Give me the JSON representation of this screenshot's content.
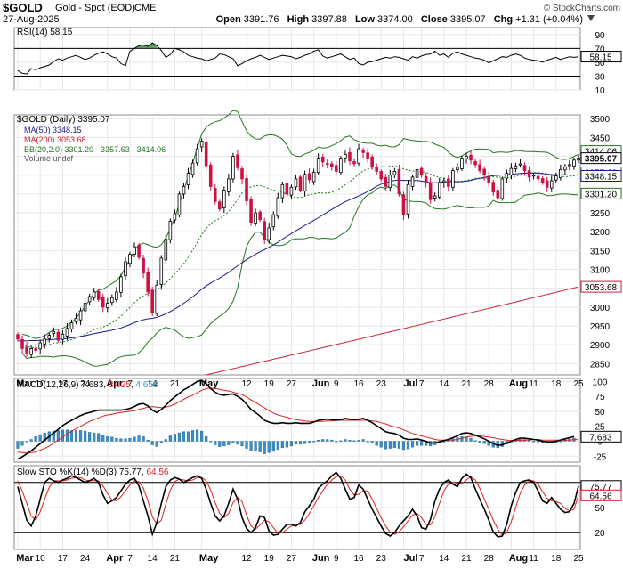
{
  "header": {
    "symbol": "$GOLD",
    "name": "Gold - Spot (EOD)",
    "exchange": "CME",
    "watermark": "© StockCharts.com",
    "date": "27-Aug-2025",
    "open_label": "Open",
    "open": "3391.76",
    "high_label": "High",
    "high": "3397.88",
    "low_label": "Low",
    "low": "3374.00",
    "close_label": "Close",
    "close": "3395.07",
    "chg_label": "Chg",
    "chg": "+1.31 (+0.04%)"
  },
  "colors": {
    "up": "#000000",
    "down": "#cc1144",
    "ma50": "#1a1a8c",
    "ma200": "#cc2233",
    "bb": "#227722",
    "macd_line": "#000000",
    "signal_line": "#dd2222",
    "histogram": "#3a8fc4",
    "sto_k": "#000000",
    "sto_d": "#dd2222",
    "rsi": "#000000"
  },
  "x_axis": {
    "labels": [
      "Mar",
      "10",
      "17",
      "24",
      "Apr",
      "7",
      "14",
      "21",
      "May",
      "12",
      "19",
      "27",
      "Jun",
      "9",
      "16",
      "23",
      "Jul",
      "7",
      "14",
      "21",
      "28",
      "Aug",
      "11",
      "18",
      "25"
    ],
    "label_index": [
      0,
      5,
      10,
      15,
      20,
      25,
      30,
      35,
      41,
      51,
      56,
      61,
      66,
      71,
      76,
      81,
      86,
      90,
      95,
      100,
      105,
      110,
      115,
      120,
      125
    ],
    "bold_labels": [
      "Mar",
      "Apr",
      "May",
      "Jun",
      "Jul",
      "Aug"
    ]
  },
  "chart_data": [
    {
      "panel": "rsi",
      "type": "line",
      "legend": "RSI(14) 58.15",
      "value_label": "58.15",
      "ylim": [
        10,
        100
      ],
      "y_ticks": [
        90,
        70,
        50,
        30,
        10
      ],
      "levels": [
        70,
        30
      ],
      "values": [
        38,
        34,
        33,
        41,
        39,
        42,
        44,
        46,
        51,
        55,
        53,
        56,
        58,
        60,
        57,
        54,
        56,
        60,
        63,
        65,
        62,
        58,
        56,
        48,
        45,
        66,
        70,
        74,
        75,
        73,
        78,
        74,
        67,
        57,
        61,
        70,
        68,
        65,
        60,
        58,
        56,
        55,
        52,
        54,
        56,
        62,
        61,
        58,
        55,
        45,
        48,
        52,
        55,
        57,
        60,
        57,
        54,
        56,
        58,
        60,
        59,
        58,
        55,
        57,
        60,
        62,
        66,
        68,
        59,
        56,
        58,
        60,
        62,
        58,
        54,
        56,
        48,
        46,
        50,
        51,
        53,
        55,
        57,
        56,
        58,
        57,
        55,
        53,
        58,
        56,
        59,
        61,
        62,
        66,
        60,
        62,
        57,
        63,
        65,
        62,
        60,
        58,
        56,
        55,
        53,
        49,
        52,
        55,
        58,
        57,
        60,
        62,
        60,
        56,
        54,
        53,
        52,
        50,
        53,
        55,
        57,
        54,
        56,
        58,
        57,
        58
      ]
    },
    {
      "panel": "price",
      "type": "candlestick",
      "legend": [
        "$GOLD (Daily) 3395.07",
        "MA(50) 3348.15",
        "MA(200) 3053.68",
        "BB(20,2.0) 3301.20 - 3357.63 - 3414.06",
        "Volume undef"
      ],
      "ylim": [
        2820,
        3510
      ],
      "y_ticks": [
        3500,
        3450,
        3400,
        3350,
        3300,
        3250,
        3200,
        3150,
        3100,
        3050,
        3000,
        2950,
        2900,
        2850
      ],
      "price_tags": [
        {
          "value": 3414.06,
          "label": "3414.06",
          "kind": "bb",
          "bold": false
        },
        {
          "value": 3395.07,
          "label": "3395.07",
          "kind": "close",
          "bold": true
        },
        {
          "value": 3357.63,
          "label": "3357.63",
          "kind": "bb",
          "bold": false
        },
        {
          "value": 3348.15,
          "label": "3348.15",
          "kind": "ma50",
          "bold": false
        },
        {
          "value": 3301.2,
          "label": "3301.20",
          "kind": "bb",
          "bold": false
        },
        {
          "value": 3053.68,
          "label": "3053.68",
          "kind": "ma200",
          "bold": false
        }
      ],
      "close": [
        2915,
        2890,
        2878,
        2890,
        2885,
        2905,
        2915,
        2925,
        2935,
        2912,
        2928,
        2943,
        2958,
        2970,
        2990,
        3010,
        3028,
        3040,
        3020,
        3000,
        3010,
        3025,
        3040,
        3080,
        3120,
        3140,
        3160,
        3132,
        3090,
        3040,
        2985,
        3058,
        3130,
        3180,
        3228,
        3248,
        3300,
        3320,
        3355,
        3382,
        3420,
        3440,
        3375,
        3320,
        3280,
        3260,
        3310,
        3340,
        3400,
        3370,
        3340,
        3282,
        3225,
        3250,
        3232,
        3180,
        3210,
        3245,
        3290,
        3325,
        3300,
        3318,
        3340,
        3310,
        3352,
        3338,
        3358,
        3395,
        3385,
        3380,
        3372,
        3360,
        3395,
        3405,
        3388,
        3380,
        3420,
        3410,
        3395,
        3374,
        3360,
        3340,
        3320,
        3350,
        3360,
        3300,
        3245,
        3325,
        3345,
        3365,
        3350,
        3330,
        3285,
        3295,
        3330,
        3335,
        3320,
        3362,
        3372,
        3395,
        3400,
        3390,
        3378,
        3362,
        3350,
        3330,
        3305,
        3290,
        3340,
        3355,
        3368,
        3374,
        3380,
        3362,
        3345,
        3350,
        3340,
        3330,
        3318,
        3335,
        3348,
        3365,
        3372,
        3378,
        3390,
        3395.07
      ]
    },
    {
      "panel": "macd",
      "type": "line+histogram",
      "legend": "MACD(12,26,9) 7.683, 3.025, 4.658",
      "legend_parts": [
        "MACD(12,26,9) 7.683, ",
        "3.025",
        ", ",
        "4.658"
      ],
      "value_label": "7.683",
      "ylim": [
        -35,
        105
      ],
      "y_ticks": [
        100,
        75,
        50,
        25,
        0,
        -25
      ],
      "macd": [
        -30,
        -26,
        -21,
        -16,
        -10,
        -4,
        2,
        8,
        14,
        20,
        26,
        31,
        35,
        39,
        43,
        46,
        48,
        50,
        52,
        52,
        52,
        52,
        52,
        52,
        53,
        55,
        58,
        62,
        63,
        59,
        52,
        48,
        53,
        60,
        68,
        74,
        80,
        86,
        90,
        95,
        100,
        102,
        96,
        88,
        82,
        78,
        77,
        78,
        79,
        75,
        70,
        62,
        53,
        48,
        42,
        35,
        32,
        30,
        30,
        31,
        30,
        30,
        31,
        30,
        30,
        30,
        32,
        35,
        36,
        37,
        36,
        35,
        36,
        38,
        37,
        36,
        37,
        38,
        35,
        31,
        26,
        21,
        16,
        14,
        13,
        10,
        5,
        3,
        3,
        4,
        2,
        0,
        -3,
        -3,
        -1,
        1,
        3,
        6,
        9,
        13,
        14,
        13,
        10,
        7,
        4,
        0,
        -4,
        -7,
        -6,
        -3,
        0,
        3,
        5,
        5,
        4,
        3,
        2,
        0,
        -1,
        -1,
        0,
        2,
        4,
        6,
        7.683
      ],
      "signal": [
        -18,
        -19,
        -20,
        -19,
        -18,
        -15,
        -12,
        -8,
        -3,
        2,
        7,
        12,
        17,
        21,
        25,
        29,
        33,
        36,
        39,
        42,
        44,
        45,
        47,
        48,
        49,
        50,
        51,
        53,
        55,
        57,
        58,
        57,
        56,
        57,
        59,
        62,
        66,
        70,
        74,
        77,
        81,
        85,
        88,
        89,
        88,
        87,
        85,
        84,
        82,
        80,
        78,
        74,
        69,
        65,
        60,
        56,
        51,
        47,
        44,
        42,
        40,
        38,
        36,
        35,
        34,
        33,
        33,
        33,
        33,
        34,
        34,
        35,
        35,
        35,
        35,
        35,
        35,
        35,
        35,
        34,
        33,
        31,
        29,
        26,
        24,
        22,
        19,
        16,
        13,
        11,
        9,
        7,
        5,
        3,
        2,
        2,
        2,
        2,
        3,
        5,
        7,
        8,
        9,
        9,
        8,
        7,
        6,
        4,
        3,
        2,
        1,
        1,
        2,
        2,
        2,
        3,
        3,
        2,
        2,
        2,
        2,
        2,
        2,
        2,
        2.5,
        3.025
      ]
    },
    {
      "panel": "sto",
      "type": "line",
      "legend": "Slow STO %K(14) %D(3) 75.77, 64.56",
      "legend_parts": [
        "Slow STO %K(14) %D(3) ",
        "75.77",
        ", ",
        "64.56"
      ],
      "k_label": "75.77",
      "d_label": "64.56",
      "ylim": [
        0,
        100
      ],
      "y_ticks": [
        80,
        50,
        20
      ],
      "levels": [
        80,
        20
      ],
      "k": [
        75,
        55,
        35,
        28,
        40,
        60,
        80,
        85,
        82,
        80,
        83,
        85,
        88,
        86,
        83,
        80,
        82,
        85,
        80,
        65,
        55,
        58,
        62,
        70,
        78,
        83,
        85,
        76,
        58,
        40,
        18,
        32,
        55,
        75,
        83,
        86,
        84,
        80,
        83,
        86,
        88,
        85,
        72,
        55,
        40,
        34,
        40,
        55,
        72,
        60,
        38,
        25,
        20,
        26,
        40,
        38,
        22,
        17,
        18,
        24,
        30,
        30,
        28,
        32,
        45,
        52,
        60,
        73,
        78,
        82,
        88,
        92,
        85,
        72,
        60,
        62,
        77,
        72,
        60,
        48,
        38,
        28,
        19,
        16,
        20,
        28,
        34,
        40,
        48,
        40,
        26,
        24,
        36,
        58,
        72,
        80,
        83,
        78,
        75,
        85,
        90,
        86,
        72,
        60,
        48,
        35,
        21,
        15,
        16,
        30,
        52,
        68,
        80,
        82,
        83,
        80,
        70,
        58,
        55,
        62,
        55,
        48,
        44,
        45,
        55,
        75.77
      ],
      "d": [
        82,
        70,
        55,
        40,
        35,
        45,
        60,
        74,
        82,
        82,
        82,
        83,
        85,
        86,
        86,
        83,
        82,
        82,
        82,
        76,
        67,
        59,
        58,
        63,
        70,
        77,
        82,
        81,
        73,
        58,
        39,
        30,
        35,
        54,
        71,
        81,
        84,
        83,
        82,
        83,
        86,
        86,
        82,
        71,
        56,
        43,
        38,
        43,
        56,
        62,
        57,
        41,
        28,
        24,
        29,
        35,
        33,
        26,
        19,
        20,
        24,
        28,
        29,
        30,
        35,
        43,
        52,
        62,
        70,
        78,
        83,
        87,
        88,
        83,
        72,
        65,
        66,
        70,
        70,
        60,
        49,
        38,
        28,
        21,
        18,
        21,
        27,
        34,
        41,
        43,
        38,
        30,
        29,
        39,
        55,
        70,
        78,
        80,
        79,
        79,
        83,
        87,
        83,
        73,
        60,
        48,
        35,
        24,
        17,
        20,
        33,
        50,
        67,
        77,
        82,
        82,
        78,
        69,
        61,
        58,
        57,
        55,
        49,
        46,
        48,
        64.56
      ]
    }
  ]
}
